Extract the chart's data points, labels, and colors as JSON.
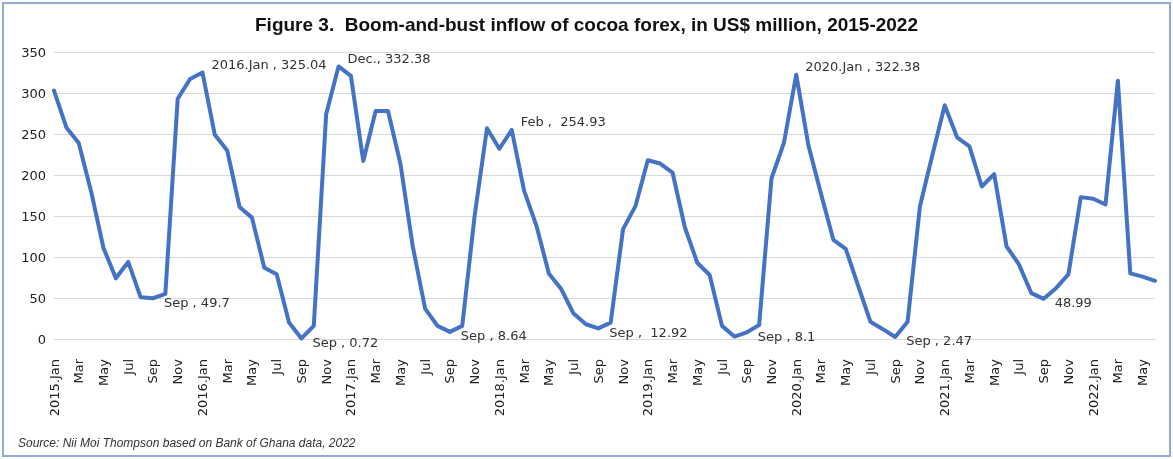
{
  "chart_data": {
    "type": "line",
    "title": "Figure 3.  Boom-and-bust inflow of cocoa forex, in US$ million, 2015-2022",
    "categories": [
      "2015.Jan",
      null,
      "Mar",
      null,
      "May",
      null,
      "Jul",
      null,
      "Sep",
      null,
      "Nov",
      null,
      "2016.Jan",
      null,
      "Mar",
      null,
      "May",
      null,
      "Jul",
      null,
      "Sep",
      null,
      "Nov",
      null,
      "2017.Jan",
      null,
      "Mar",
      null,
      "May",
      null,
      "Jul",
      null,
      "Sep",
      null,
      "Nov",
      null,
      "2018.Jan",
      null,
      "Mar",
      null,
      "May",
      null,
      "Jul",
      null,
      "Sep",
      null,
      "Nov",
      null,
      "2019.Jan",
      null,
      "Mar",
      null,
      "May",
      null,
      "Jul",
      null,
      "Sep",
      null,
      "Nov",
      null,
      "2020.Jan",
      null,
      "Mar",
      null,
      "May",
      null,
      "Jul",
      null,
      "Sep",
      null,
      "Nov",
      null,
      "2021.Jan",
      null,
      "Mar",
      null,
      "May",
      null,
      "Jul",
      null,
      "Sep",
      null,
      "Nov",
      null,
      "2022.Jan",
      null,
      "Mar",
      null,
      "May",
      null
    ],
    "series": [
      {
        "color": "#4472c4",
        "values": [
          303,
          258,
          239,
          180,
          111,
          74,
          94,
          51,
          49.7,
          55,
          293,
          317,
          325.04,
          249,
          230,
          161,
          148,
          87,
          79,
          20,
          0.72,
          16,
          274,
          332.38,
          321,
          217,
          278,
          278,
          214,
          113,
          37,
          16,
          8.64,
          16,
          150,
          257,
          232,
          254.93,
          181,
          138,
          80,
          61,
          31,
          18,
          12.92,
          20,
          134,
          162,
          218,
          214,
          203,
          136,
          93,
          78,
          16,
          3,
          8.1,
          17,
          196,
          239,
          322.38,
          235,
          177,
          121,
          110,
          65,
          21,
          12,
          2.47,
          21,
          162,
          224,
          285,
          246,
          235,
          186,
          201,
          113,
          91,
          56,
          48.99,
          62,
          79,
          173,
          171,
          164,
          315,
          80,
          76,
          71
        ],
        "value_labels": [
          null,
          null,
          null,
          null,
          null,
          null,
          null,
          null,
          "Sep , 49.7",
          null,
          null,
          null,
          "2016.Jan , 325.04",
          null,
          null,
          null,
          null,
          null,
          null,
          null,
          "Sep , 0.72",
          null,
          null,
          "Dec., 332.38",
          null,
          null,
          null,
          null,
          null,
          null,
          null,
          null,
          "Sep , 8.64",
          null,
          null,
          null,
          null,
          "Feb ,  254.93",
          null,
          null,
          null,
          null,
          null,
          null,
          "Sep ,  12.92",
          null,
          null,
          null,
          null,
          null,
          null,
          null,
          null,
          null,
          null,
          null,
          "Sep , 8.1",
          null,
          null,
          null,
          "2020.Jan , 322.38",
          null,
          null,
          null,
          null,
          null,
          null,
          null,
          "Sep , 2.47",
          null,
          null,
          null,
          null,
          null,
          null,
          null,
          null,
          null,
          null,
          null,
          "48.99",
          null,
          null,
          null,
          null,
          null,
          null,
          null,
          null,
          null
        ]
      }
    ],
    "ylim": [
      0,
      350
    ],
    "yticks": [
      0,
      50,
      100,
      150,
      200,
      250,
      300,
      350
    ],
    "grid": "y",
    "marker": "none",
    "line_style": "solid",
    "annotations": [
      "Source: Nii Moi Thompson based on Bank of Ghana data, 2022"
    ]
  }
}
